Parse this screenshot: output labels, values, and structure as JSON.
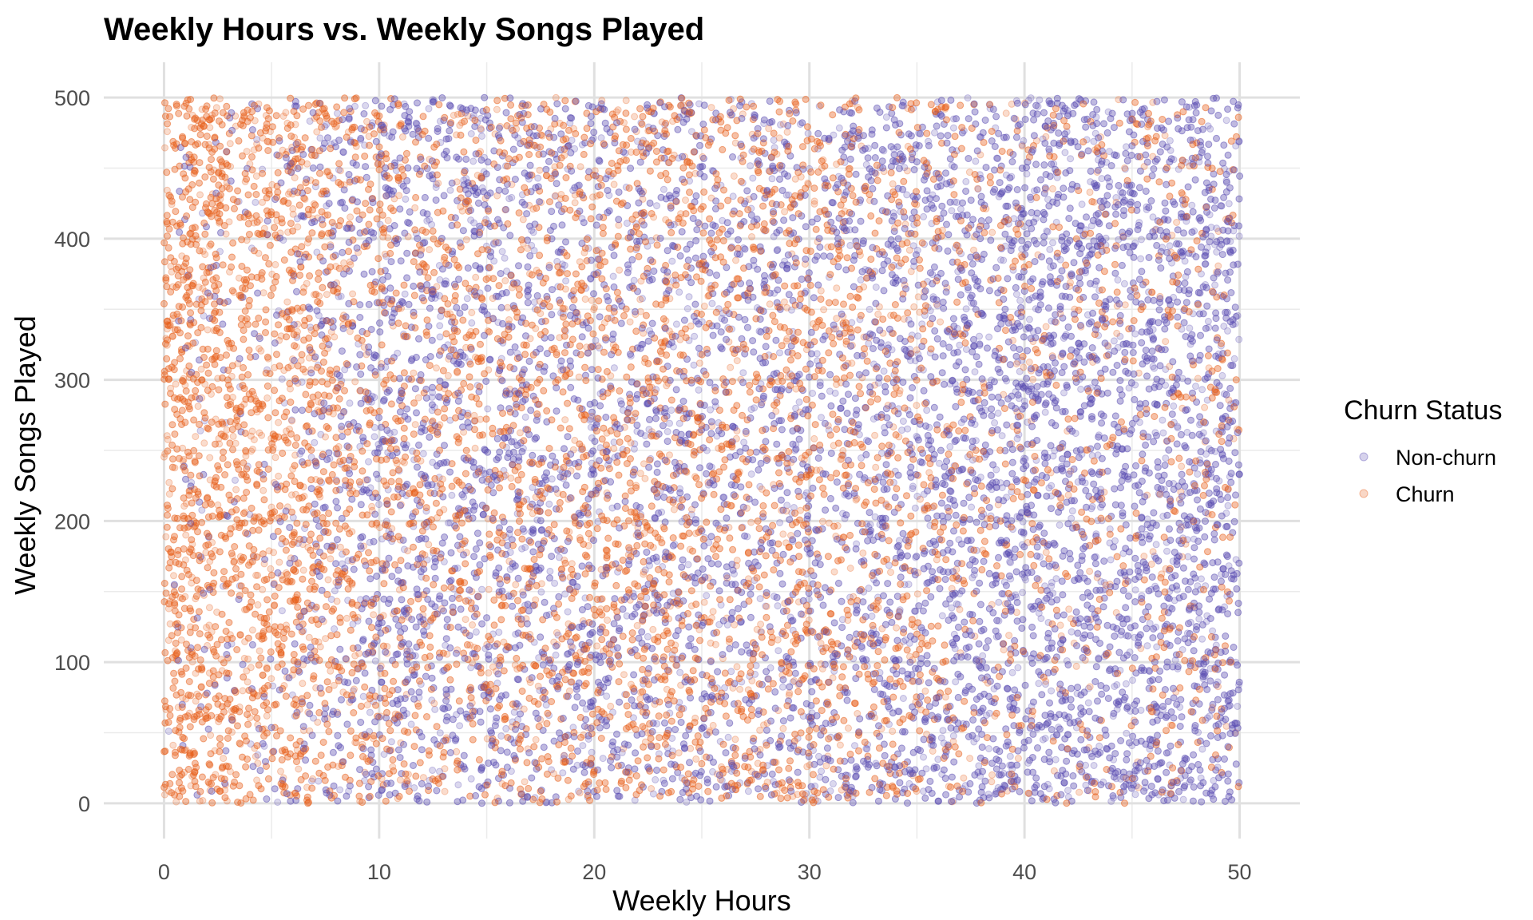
{
  "chart_data": {
    "type": "scatter",
    "title": "Weekly Hours vs. Weekly Songs Played",
    "xlabel": "Weekly Hours",
    "ylabel": "Weekly Songs Played",
    "xlim": [
      -2.8,
      52.8
    ],
    "ylim": [
      -25,
      525
    ],
    "xticks": [
      0,
      10,
      20,
      30,
      40,
      50
    ],
    "yticks": [
      0,
      100,
      200,
      300,
      400,
      500
    ],
    "grid": true,
    "legend": {
      "title": "Churn Status",
      "placement": "right",
      "entries": [
        "Non-churn",
        "Churn"
      ]
    },
    "series": [
      {
        "name": "Non-churn",
        "color": "#5b4db3",
        "x_range": [
          0,
          50
        ],
        "y_range": [
          0,
          500
        ],
        "density_by_hours": [
          [
            0,
            0.05
          ],
          [
            5,
            0.15
          ],
          [
            10,
            0.55
          ],
          [
            20,
            0.5
          ],
          [
            30,
            0.5
          ],
          [
            40,
            0.8
          ],
          [
            50,
            0.8
          ]
        ]
      },
      {
        "name": "Churn",
        "color": "#e8601c",
        "x_range": [
          0,
          50
        ],
        "y_range": [
          0,
          500
        ],
        "density_by_hours": [
          [
            0,
            0.95
          ],
          [
            5,
            0.85
          ],
          [
            10,
            0.45
          ],
          [
            20,
            0.5
          ],
          [
            30,
            0.5
          ],
          [
            40,
            0.2
          ],
          [
            50,
            0.2
          ]
        ]
      }
    ]
  }
}
